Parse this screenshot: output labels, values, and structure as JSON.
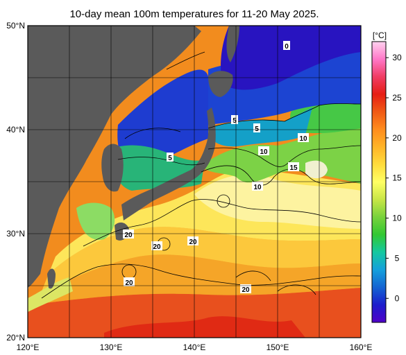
{
  "title": "10-day mean 100m temperatures for 11-20 May 2025.",
  "map": {
    "lat_labels": [
      "50°N",
      "40°N",
      "30°N",
      "20°N"
    ],
    "lon_labels": [
      "120°E",
      "130°E",
      "140°E",
      "150°E",
      "160°E"
    ],
    "contour_labels": [
      "0",
      "5",
      "5",
      "5",
      "10",
      "10",
      "10",
      "15",
      "20",
      "20",
      "20",
      "20",
      "20"
    ]
  },
  "colorbar": {
    "unit": "[°C]",
    "ticks": [
      "30",
      "25",
      "20",
      "15",
      "10",
      "5",
      "0"
    ],
    "colors": [
      "#5000c8",
      "#1c1ccc",
      "#1464d2",
      "#14a0dc",
      "#14c8a0",
      "#32c832",
      "#78d23c",
      "#c8e646",
      "#ffff64",
      "#ffdc3c",
      "#ffb428",
      "#ff8c1e",
      "#f05a14",
      "#e61e14",
      "#f03c64",
      "#ff78c8",
      "#ffd2f0"
    ]
  },
  "colors": {
    "land": "#5a5a5a",
    "land_light": "#bebebe",
    "ocean_cold": "#1e28c8",
    "ocean_warm": "#f07814"
  }
}
